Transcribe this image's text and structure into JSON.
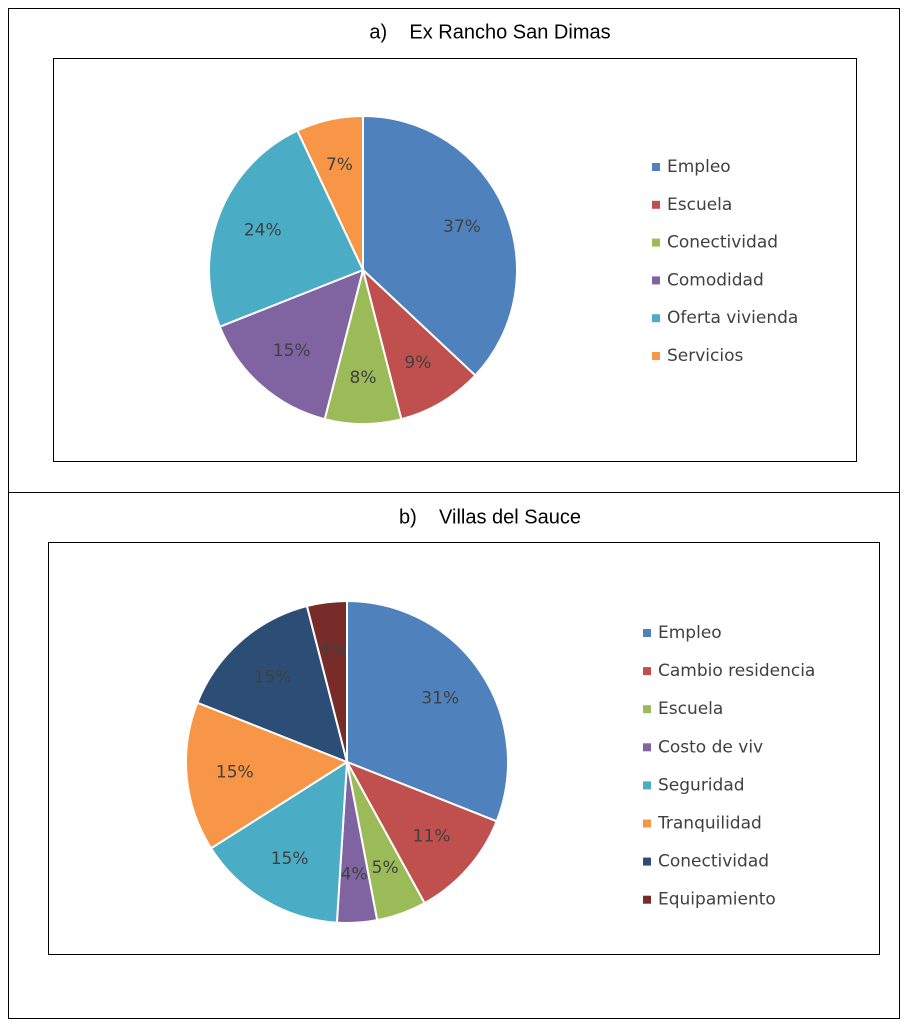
{
  "chart_data": [
    {
      "type": "pie",
      "title": "a)    Ex Rancho San Dimas",
      "categories": [
        "Empleo",
        "Escuela",
        "Conectividad",
        "Comodidad",
        "Oferta vivienda",
        "Servicios"
      ],
      "values": [
        37,
        9,
        8,
        15,
        24,
        7
      ],
      "value_labels": [
        "37%",
        "9%",
        "8%",
        "15%",
        "24%",
        "7%"
      ],
      "colors": [
        "#4f81bd",
        "#c0504d",
        "#9bbb59",
        "#8064a2",
        "#4bacc6",
        "#f79646"
      ],
      "legend": "right"
    },
    {
      "type": "pie",
      "title": "b)    Villas del Sauce",
      "categories": [
        "Empleo",
        "Cambio residencia",
        "Escuela",
        "Costo de viv",
        "Seguridad",
        "Tranquilidad",
        "Conectividad",
        "Equipamiento"
      ],
      "values": [
        31,
        11,
        5,
        4,
        15,
        15,
        15,
        4
      ],
      "value_labels": [
        "31%",
        "11%",
        "5%",
        "4%",
        "15%",
        "15%",
        "15%",
        "4%"
      ],
      "colors": [
        "#4f81bd",
        "#c0504d",
        "#9bbb59",
        "#8064a2",
        "#4bacc6",
        "#f79646",
        "#2c4d75",
        "#772c2a"
      ],
      "legend": "right"
    }
  ]
}
